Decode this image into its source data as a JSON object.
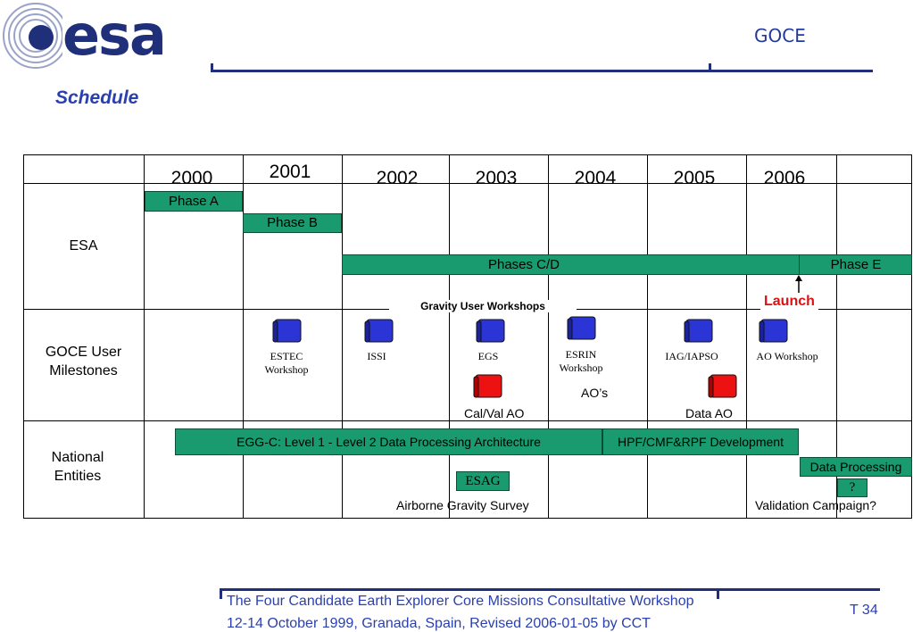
{
  "header": {
    "logo": "esa",
    "mission": "GOCE",
    "title": "Schedule"
  },
  "years": [
    "2000",
    "2001",
    "2002",
    "2003",
    "2004",
    "2005",
    "2006"
  ],
  "rows": {
    "esa": "ESA",
    "goce_line1": "GOCE User",
    "goce_line2": "Milestones",
    "national_line1": "National",
    "national_line2": "Entities"
  },
  "bars": {
    "phase_a": "Phase A",
    "phase_b": "Phase B",
    "phases_cd": "Phases C/D",
    "phase_e": "Phase E",
    "egg_c": "EGG-C: Level 1 - Level 2 Data Processing Architecture",
    "hpf": "HPF/CMF&RPF Development",
    "data_processing": "Data Processing",
    "esag": "ESAG",
    "question": "?"
  },
  "labels": {
    "launch": "Launch",
    "gravity_workshops": "Gravity User Workshops",
    "estec_1": "ESTEC",
    "estec_2": "Workshop",
    "issi": "ISSI",
    "egs": "EGS",
    "esrin_1": "ESRIN",
    "esrin_2": "Workshop",
    "iag": "IAG/IAPSO",
    "ao_workshop": "AO Workshop",
    "aos": "AO’s",
    "calval": "Cal/Val AO",
    "data_ao": "Data AO",
    "airborne": "Airborne Gravity Survey",
    "validation": "Validation Campaign?"
  },
  "footer": {
    "line1": "The Four Candidate Earth Explorer Core Missions Consultative Workshop",
    "line2": "12-14 October 1999, Granada, Spain, Revised 2006-01-05 by CCT",
    "page": "T 34"
  },
  "colors": {
    "bar": "#1a9b6f",
    "scroll_blue": "#2b35d6",
    "scroll_red": "#ee1111",
    "brand": "#1f2f7a",
    "launch": "#dd1111"
  }
}
